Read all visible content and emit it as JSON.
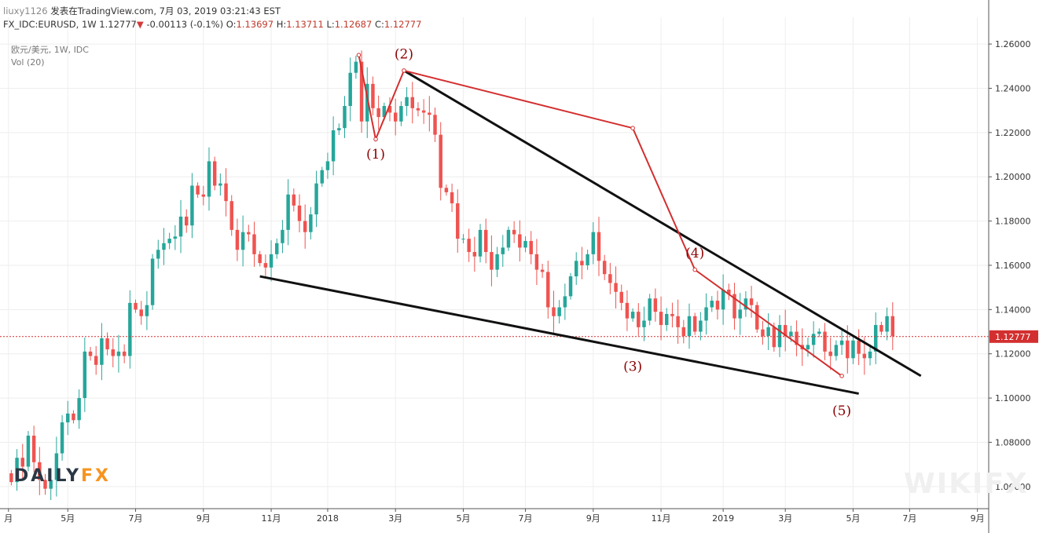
{
  "header": {
    "user": "liuxy1126",
    "published": "发表在TradingView.com, 7月 03, 2019 03:21:43 EST",
    "symbol": "FX_IDC:EURUSD, 1W",
    "last": "1.12777",
    "change_arrow": "▼",
    "change": "-0.00113 (-0.1%)",
    "o_label": "O:",
    "o": "1.13697",
    "h_label": "H:",
    "h": "1.13711",
    "l_label": "L:",
    "l": "1.12687",
    "c_label": "C:",
    "c": "1.12777"
  },
  "indicators": {
    "legend": "欧元/美元, 1W, IDC",
    "vol": "Vol (20)"
  },
  "logo": {
    "part1": "DAILY",
    "part2": "FX"
  },
  "watermark": "WIKIFX",
  "colors": {
    "up": "#26a69a",
    "down": "#ef5350",
    "wave": "#d32f2f",
    "trend": "#111111",
    "price_line": "#d32f2f",
    "grid": "#eeeeee"
  },
  "chart_data": {
    "type": "candlestick",
    "title": "",
    "xlabel": "",
    "ylabel": "",
    "ylim": [
      1.05,
      1.265
    ],
    "x_range_weeks": [
      -2,
      173
    ],
    "grid": true,
    "yticks": [
      1.06,
      1.08,
      1.1,
      1.12,
      1.14,
      1.16,
      1.18,
      1.2,
      1.22,
      1.24,
      1.26
    ],
    "ytick_labels": [
      "1.06000",
      "1.08000",
      "1.10000",
      "1.12000",
      "1.14000",
      "1.16000",
      "1.18000",
      "1.20000",
      "1.22000",
      "1.24000",
      "1.26000"
    ],
    "xticks": [
      {
        "w": -0.5,
        "label": "月"
      },
      {
        "w": 10,
        "label": "5月"
      },
      {
        "w": 22,
        "label": "7月"
      },
      {
        "w": 34,
        "label": "9月"
      },
      {
        "w": 46,
        "label": "11月"
      },
      {
        "w": 56,
        "label": "2018"
      },
      {
        "w": 68,
        "label": "3月"
      },
      {
        "w": 80,
        "label": "5月"
      },
      {
        "w": 91,
        "label": "7月"
      },
      {
        "w": 103,
        "label": "9月"
      },
      {
        "w": 115,
        "label": "11月"
      },
      {
        "w": 126,
        "label": "2019"
      },
      {
        "w": 137,
        "label": "3月"
      },
      {
        "w": 149,
        "label": "5月"
      },
      {
        "w": 159,
        "label": "7月"
      },
      {
        "w": 171,
        "label": "9月"
      }
    ],
    "last_price": 1.12777,
    "last_price_label": "1.12777",
    "closes": [
      1.062,
      1.073,
      1.069,
      1.083,
      1.071,
      1.063,
      1.059,
      1.063,
      1.075,
      1.089,
      1.093,
      1.09,
      1.1,
      1.121,
      1.119,
      1.115,
      1.127,
      1.122,
      1.119,
      1.121,
      1.119,
      1.143,
      1.14,
      1.137,
      1.142,
      1.163,
      1.167,
      1.17,
      1.172,
      1.173,
      1.182,
      1.178,
      1.196,
      1.192,
      1.191,
      1.207,
      1.196,
      1.197,
      1.189,
      1.176,
      1.167,
      1.175,
      1.174,
      1.165,
      1.161,
      1.159,
      1.165,
      1.17,
      1.176,
      1.192,
      1.187,
      1.18,
      1.175,
      1.183,
      1.197,
      1.203,
      1.207,
      1.221,
      1.222,
      1.232,
      1.247,
      1.252,
      1.225,
      1.242,
      1.231,
      1.227,
      1.232,
      1.229,
      1.225,
      1.232,
      1.236,
      1.231,
      1.23,
      1.229,
      1.228,
      1.219,
      1.195,
      1.193,
      1.188,
      1.172,
      1.172,
      1.166,
      1.164,
      1.176,
      1.166,
      1.158,
      1.165,
      1.168,
      1.176,
      1.174,
      1.168,
      1.171,
      1.165,
      1.158,
      1.157,
      1.141,
      1.137,
      1.141,
      1.146,
      1.155,
      1.162,
      1.16,
      1.165,
      1.175,
      1.162,
      1.156,
      1.152,
      1.148,
      1.143,
      1.136,
      1.139,
      1.132,
      1.135,
      1.145,
      1.139,
      1.133,
      1.138,
      1.137,
      1.132,
      1.128,
      1.137,
      1.13,
      1.135,
      1.141,
      1.144,
      1.14,
      1.149,
      1.147,
      1.136,
      1.14,
      1.145,
      1.142,
      1.131,
      1.128,
      1.132,
      1.123,
      1.133,
      1.128,
      1.13,
      1.124,
      1.122,
      1.124,
      1.129,
      1.13,
      1.121,
      1.119,
      1.124,
      1.126,
      1.118,
      1.126,
      1.12,
      1.118,
      1.121,
      1.133,
      1.13,
      1.137,
      1.128
    ],
    "series": [
      {
        "name": "(1)-(5)",
        "points": [
          [
            61.5,
            1.255
          ],
          [
            64.5,
            1.217
          ],
          [
            69.5,
            1.248
          ],
          [
            110,
            1.222
          ],
          [
            121,
            1.158
          ],
          [
            147,
            1.11
          ]
        ]
      }
    ],
    "trendlines": [
      {
        "from": [
          69.5,
          1.248
        ],
        "to": [
          161,
          1.11
        ]
      },
      {
        "from": [
          44,
          1.155
        ],
        "to": [
          150,
          1.102
        ]
      }
    ],
    "wave_labels": [
      {
        "text": "(1)",
        "w": 64.5,
        "y": 1.216,
        "pos": "below"
      },
      {
        "text": "(2)",
        "w": 69.5,
        "y": 1.25,
        "pos": "above"
      },
      {
        "text": "(3)",
        "w": 110,
        "y": 1.12,
        "pos": "below"
      },
      {
        "text": "(4)",
        "w": 121,
        "y": 1.16,
        "pos": "above"
      },
      {
        "text": "(5)",
        "w": 147,
        "y": 1.1,
        "pos": "below"
      }
    ]
  }
}
